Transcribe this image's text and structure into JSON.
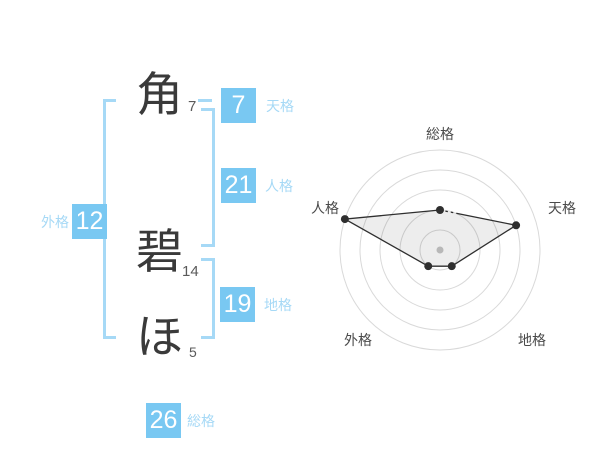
{
  "name_panel": {
    "characters": [
      {
        "char": "角",
        "strokes": "7"
      },
      {
        "char": "碧",
        "strokes": "14"
      },
      {
        "char": "ほ",
        "strokes": "5"
      }
    ],
    "kaku": [
      {
        "id": "tenkaku",
        "label": "天格",
        "value": "7"
      },
      {
        "id": "jinkaku",
        "label": "人格",
        "value": "21"
      },
      {
        "id": "chikaku",
        "label": "地格",
        "value": "19"
      },
      {
        "id": "gaikaku",
        "label": "外格",
        "value": "12"
      },
      {
        "id": "soukaku",
        "label": "総格",
        "value": "26"
      }
    ],
    "colors": {
      "square_bg": "#79c8f2",
      "square_text": "#ffffff",
      "kaku_label": "#a6d9f6",
      "bracket": "#a6d9f6",
      "char_text": "#3a3a3a",
      "stroke_text": "#5a5a5a"
    }
  },
  "chart_data": {
    "type": "radar",
    "axes": [
      "総格",
      "天格",
      "地格",
      "外格",
      "人格"
    ],
    "values": [
      2,
      4,
      1,
      1,
      5
    ],
    "max": 5,
    "rings": 5,
    "start_angle_deg": 90,
    "direction": "clockwise",
    "legend": "none",
    "grid": "concentric-circles",
    "ring_color": "#d9d9d9",
    "line_color": "#2f2f2f",
    "fill_color": "rgba(0,0,0,0.07)",
    "point_color": "#2f2f2f",
    "center_dot_color": "#b8b8b8",
    "label_color": "#4a4a4a"
  }
}
